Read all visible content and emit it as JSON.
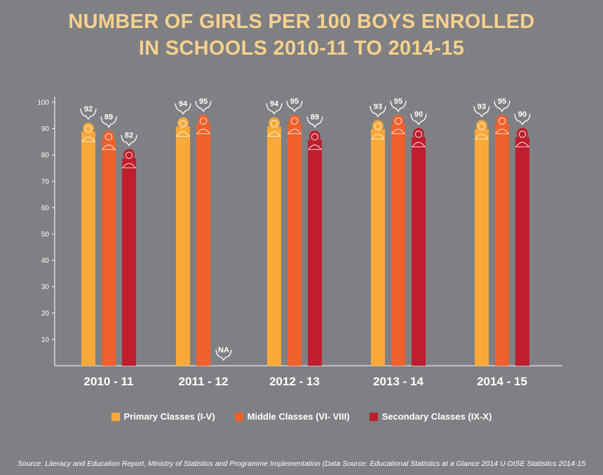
{
  "title_lines": [
    "NUMBER OF GIRLS PER 100 BOYS ENROLLED",
    "IN SCHOOLS  2010-11 TO 2014-15"
  ],
  "source": "Source: Literacy and Education Report, Ministry of Statistics and Programme Implementation (Data Source: Educational Statistics at a Glance 2014 U-DISE Statistics 2014-15",
  "colors": {
    "background": "#7f8083",
    "title": "#f7d18c",
    "primary": "#f8a93a",
    "middle": "#f0602a",
    "secondary": "#be1e2d",
    "axis": "#ffffff"
  },
  "legend": [
    {
      "label": "Primary Classes  (I-V)",
      "color": "#f8a93a"
    },
    {
      "label": "Middle Classes (VI- VIII)",
      "color": "#f0602a"
    },
    {
      "label": "Secondary Classes (IX-X)",
      "color": "#be1e2d"
    }
  ],
  "chart_data": {
    "type": "bar",
    "title": "NUMBER OF GIRLS PER 100 BOYS ENROLLED IN SCHOOLS  2010-11 TO 2014-15",
    "categories": [
      "2010 - 11",
      "2011 - 12",
      "2012 - 13",
      "2013 - 14",
      "2014 - 15"
    ],
    "series": [
      {
        "name": "Primary Classes  (I-V)",
        "values": [
          92,
          94,
          94,
          93,
          93
        ]
      },
      {
        "name": "Middle Classes (VI- VIII)",
        "values": [
          89,
          95,
          95,
          95,
          95
        ]
      },
      {
        "name": "Secondary Classes (IX-X)",
        "values": [
          82,
          null,
          89,
          90,
          90
        ]
      }
    ],
    "missing_label": "NA",
    "yticks": [
      10,
      20,
      30,
      40,
      50,
      60,
      70,
      80,
      90,
      100
    ],
    "ylim": [
      0,
      100
    ],
    "xlabel": "",
    "ylabel": "",
    "grid": false,
    "legend_position": "bottom"
  }
}
